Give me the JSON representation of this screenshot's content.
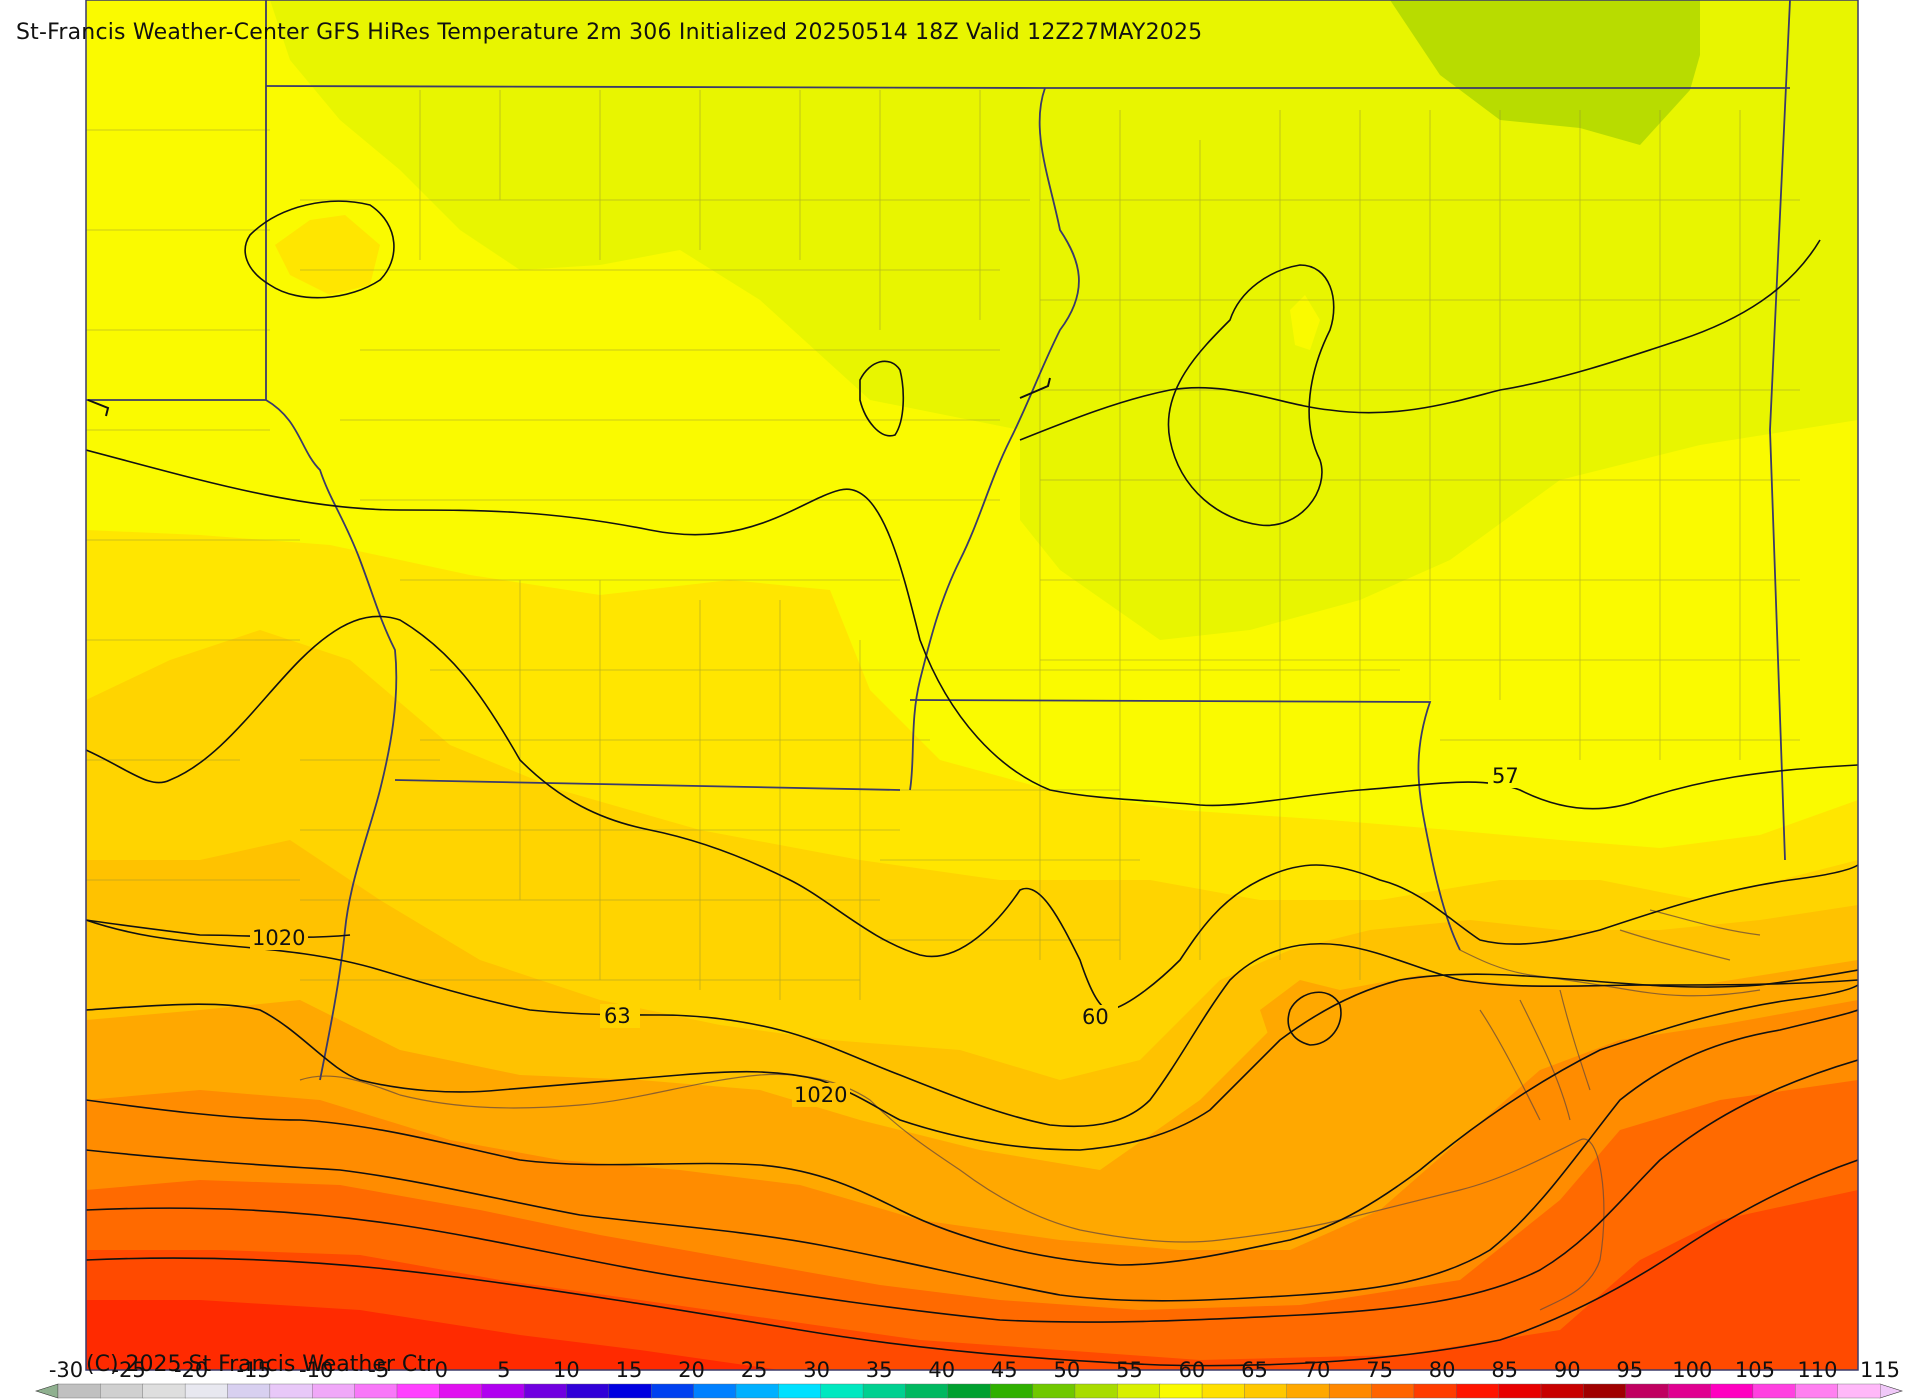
{
  "header": {
    "title": "St-Francis Weather-Center GFS HiRes Temperature 2m  306 Initialized 20250514 18Z Valid 12Z27MAY2025"
  },
  "footer": {
    "copyright": "(C) 2025 St Francis Weather Ctr"
  },
  "map": {
    "isobar_labels": [
      "1020",
      "1020"
    ],
    "isotherm_labels": [
      "57",
      "60",
      "63"
    ],
    "fill_colors": [
      "#fafa00",
      "#e8f500",
      "#b8dc00",
      "#ffe600",
      "#ffd400",
      "#ffc200",
      "#ffa800",
      "#ff8c00",
      "#ff6a00",
      "#ff4a00",
      "#ff2a00"
    ]
  },
  "colorbar": {
    "labels": [
      "-30",
      "-25",
      "-20",
      "-15",
      "-10",
      "-5",
      "0",
      "5",
      "10",
      "15",
      "20",
      "25",
      "30",
      "35",
      "40",
      "45",
      "50",
      "55",
      "60",
      "65",
      "70",
      "75",
      "80",
      "85",
      "90",
      "95",
      "100",
      "105",
      "110",
      "115"
    ],
    "colors": [
      "#c0c0c0",
      "#d0d0d0",
      "#dedede",
      "#e8e8f0",
      "#d8d0f0",
      "#e8c8f8",
      "#f0a8f8",
      "#f878f8",
      "#ff40ff",
      "#e010f0",
      "#b000f0",
      "#7000e0",
      "#3000d8",
      "#0000e0",
      "#0040f0",
      "#0080ff",
      "#00b0ff",
      "#00e0ff",
      "#00e8c0",
      "#00d090",
      "#00b860",
      "#00a030",
      "#30b000",
      "#70c800",
      "#a8dc00",
      "#d8f000",
      "#fafa00",
      "#ffe000",
      "#ffc800",
      "#ffa800",
      "#ff8800",
      "#ff6400",
      "#ff3c00",
      "#ff1400",
      "#e80000",
      "#c80000",
      "#a00000",
      "#c00060",
      "#e00090",
      "#ff00c0",
      "#ff40e0",
      "#ff80f0",
      "#ffb8f8"
    ]
  }
}
